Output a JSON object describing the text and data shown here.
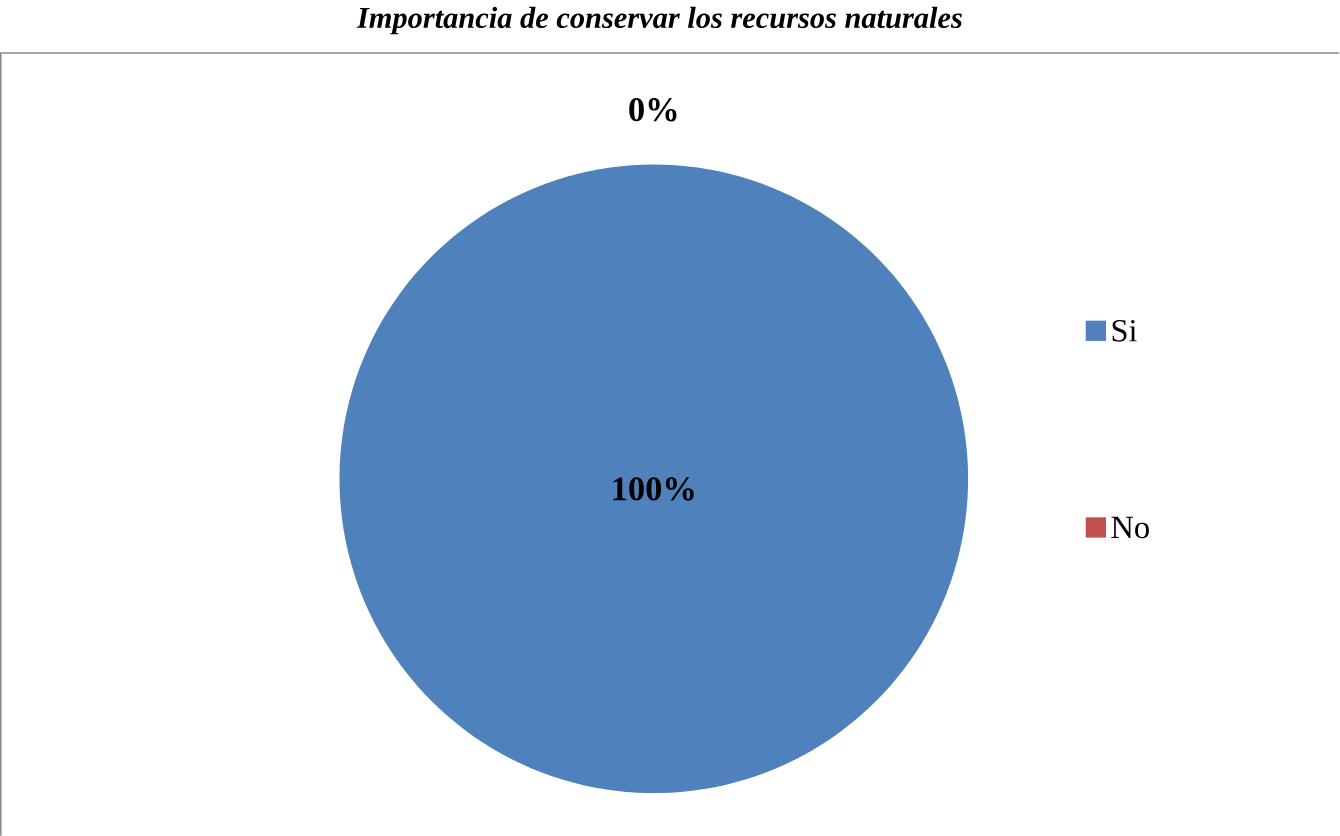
{
  "chart_data": {
    "type": "pie",
    "title": "Importancia de conservar los recursos naturales",
    "categories": [
      "Si",
      "No"
    ],
    "values": [
      100,
      0
    ],
    "colors": [
      "#4f81bd",
      "#c0504d"
    ],
    "value_labels": [
      "100%",
      "0%"
    ],
    "legend": "right"
  }
}
